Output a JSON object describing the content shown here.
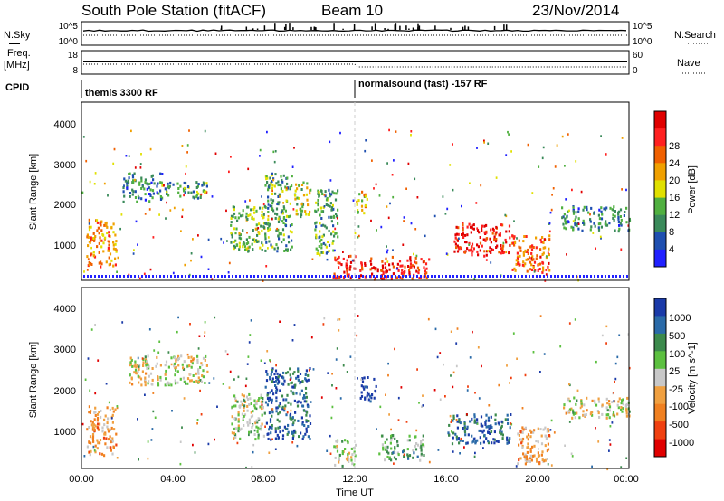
{
  "header": {
    "station": "South Pole Station (fitACF)",
    "beam": "Beam 10",
    "date": "23/Nov/2014"
  },
  "left_labels": {
    "nsky": "N.Sky",
    "freq_line1": "Freq.",
    "freq_line2": "[MHz]",
    "cpid": "CPID"
  },
  "right_labels": {
    "nsearch": "N.Search",
    "nave": "Nave"
  },
  "noise_panel": {
    "ticks_left": [
      "10^5",
      "10^0"
    ],
    "ticks_right": [
      "10^5",
      "10^0"
    ]
  },
  "freq_panel": {
    "ticks_left": [
      "18",
      "8"
    ],
    "ticks_right": [
      "60",
      "0"
    ]
  },
  "cpid_panel": {
    "segments": [
      {
        "label": "themis 3300 RF",
        "start_hour": 0
      },
      {
        "label": "normalsound (fast) -157 RF",
        "start_hour": 12
      }
    ]
  },
  "x_axis": {
    "label": "Time UT",
    "ticks": [
      "00:00",
      "04:00",
      "08:00",
      "12:00",
      "16:00",
      "20:00",
      "00:00"
    ]
  },
  "power_panel": {
    "ylabel": "Slant Range [km]",
    "yticks": [
      "1000",
      "2000",
      "3000",
      "4000"
    ],
    "colorbar_title": "Power [dB]",
    "colorbar_ticks": [
      "4",
      "8",
      "12",
      "16",
      "20",
      "24",
      "28"
    ],
    "colors": [
      "#2020ff",
      "#1f4fb0",
      "#3a8a5a",
      "#50b040",
      "#e0e000",
      "#f0a000",
      "#f06000",
      "#ff2020",
      "#e00000"
    ]
  },
  "velocity_panel": {
    "ylabel": "Slant Range [km]",
    "yticks": [
      "1000",
      "2000",
      "3000",
      "4000"
    ],
    "colorbar_title": "Velocity [m s^-1]",
    "colorbar_ticks": [
      "1000",
      "500",
      "100",
      "25",
      "-25",
      "-100",
      "-500",
      "-1000"
    ],
    "colors": [
      "#1a3aa8",
      "#2a6aa8",
      "#3c8a4c",
      "#5cc040",
      "#c8c8c8",
      "#f0a040",
      "#f08020",
      "#f04010",
      "#e00000"
    ]
  },
  "chart_data": [
    {
      "type": "heatmap",
      "title": "South Pole Station (fitACF) Beam 10 23/Nov/2014",
      "xlabel": "Time UT",
      "ylabel": "Slant Range [km]",
      "xlim": [
        0,
        24
      ],
      "ylim": [
        180,
        4500
      ],
      "colorbar": {
        "label": "Power [dB]",
        "range": [
          0,
          30
        ]
      },
      "regions": [
        {
          "t": [
            0.2,
            1.5
          ],
          "range": [
            500,
            1700
          ],
          "value": 20
        },
        {
          "t": [
            1.8,
            3.5
          ],
          "range": [
            2100,
            2800
          ],
          "value": 8
        },
        {
          "t": [
            3.5,
            5.5
          ],
          "range": [
            2200,
            2600
          ],
          "value": 10
        },
        {
          "t": [
            6.5,
            8.0
          ],
          "range": [
            900,
            2000
          ],
          "value": 12
        },
        {
          "t": [
            8.0,
            9.2
          ],
          "range": [
            900,
            2800
          ],
          "value": 10
        },
        {
          "t": [
            9.3,
            10.0
          ],
          "range": [
            1700,
            2600
          ],
          "value": 14
        },
        {
          "t": [
            10.2,
            11.2
          ],
          "range": [
            800,
            2400
          ],
          "value": 10
        },
        {
          "t": [
            11.0,
            15.2
          ],
          "range": [
            250,
            800
          ],
          "value": 26
        },
        {
          "t": [
            12.0,
            12.5
          ],
          "range": [
            1800,
            2400
          ],
          "value": 16
        },
        {
          "t": [
            16.3,
            18.8
          ],
          "range": [
            800,
            1600
          ],
          "value": 26
        },
        {
          "t": [
            18.8,
            20.5
          ],
          "range": [
            400,
            1300
          ],
          "value": 22
        },
        {
          "t": [
            21.0,
            24.0
          ],
          "range": [
            1400,
            2000
          ],
          "value": 8
        }
      ]
    },
    {
      "type": "heatmap",
      "title": "",
      "xlabel": "Time UT",
      "ylabel": "Slant Range [km]",
      "xlim": [
        0,
        24
      ],
      "ylim": [
        180,
        4500
      ],
      "colorbar": {
        "label": "Velocity [m s^-1]",
        "range": [
          -1000,
          1000
        ]
      },
      "regions": [
        {
          "t": [
            0.2,
            1.5
          ],
          "range": [
            500,
            1700
          ],
          "value": -300
        },
        {
          "t": [
            2.0,
            5.5
          ],
          "range": [
            2200,
            2900
          ],
          "value": 0
        },
        {
          "t": [
            6.5,
            8.0
          ],
          "range": [
            900,
            2000
          ],
          "value": 100
        },
        {
          "t": [
            8.0,
            10.0
          ],
          "range": [
            900,
            2600
          ],
          "value": 700
        },
        {
          "t": [
            11.0,
            12.0
          ],
          "range": [
            250,
            900
          ],
          "value": 100
        },
        {
          "t": [
            12.2,
            12.9
          ],
          "range": [
            1800,
            2400
          ],
          "value": 1000
        },
        {
          "t": [
            13.0,
            15.0
          ],
          "range": [
            400,
            1000
          ],
          "value": 300
        },
        {
          "t": [
            16.0,
            18.8
          ],
          "range": [
            800,
            1500
          ],
          "value": 700
        },
        {
          "t": [
            19.0,
            20.5
          ],
          "range": [
            300,
            1200
          ],
          "value": -300
        },
        {
          "t": [
            21.0,
            24.0
          ],
          "range": [
            1400,
            1900
          ],
          "value": 0
        }
      ]
    }
  ]
}
